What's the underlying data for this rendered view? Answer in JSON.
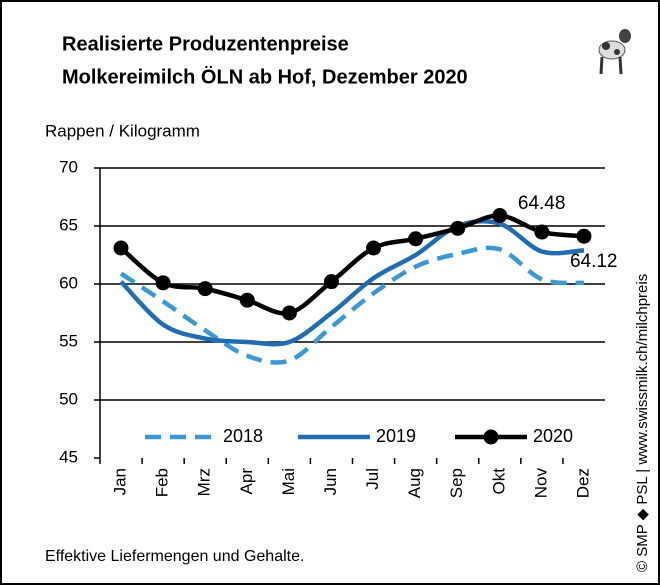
{
  "chart_data": {
    "type": "line",
    "title": "Realisierte Produzentenpreise",
    "subtitle": "Molkereimilch ÖLN ab Hof, Dezember 2020",
    "y_label": "Rappen / Kilogramm",
    "note": "Effektive Liefermengen und Gehalte.",
    "source": "© SMP ◆ PSL | www.swissmilk.ch/milchpreis",
    "categories": [
      "Jan",
      "Feb",
      "Mrz",
      "Apr",
      "Mai",
      "Jun",
      "Jul",
      "Aug",
      "Sep",
      "Okt",
      "Nov",
      "Dez"
    ],
    "series": [
      {
        "name": "2018",
        "color": "#3a9ad9",
        "style": "dashed",
        "values": [
          60.9,
          58.5,
          56.0,
          53.8,
          53.4,
          56.3,
          59.2,
          61.5,
          62.6,
          63.0,
          60.4,
          60.1
        ]
      },
      {
        "name": "2019",
        "color": "#1f6db3",
        "style": "solid",
        "values": [
          60.2,
          56.5,
          55.3,
          55.0,
          55.0,
          57.5,
          60.5,
          62.5,
          65.0,
          65.2,
          62.8,
          62.9
        ]
      },
      {
        "name": "2020",
        "color": "#000000",
        "style": "solid",
        "marker": "circle",
        "values": [
          63.1,
          60.1,
          59.6,
          58.6,
          57.5,
          60.2,
          63.1,
          63.9,
          64.8,
          65.9,
          64.48,
          64.12
        ],
        "labeled": [
          10,
          11
        ]
      }
    ],
    "ylim": [
      45,
      70
    ],
    "yticks": [
      45,
      50,
      55,
      60,
      65,
      70
    ],
    "grid": true,
    "legend": "bottom"
  }
}
